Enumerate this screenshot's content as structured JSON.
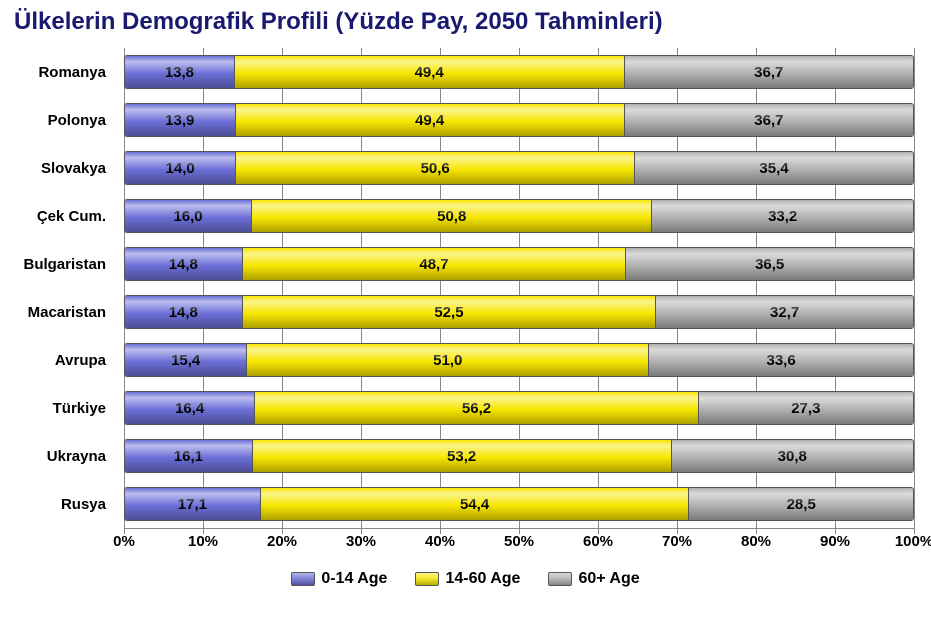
{
  "chart": {
    "type": "stacked-bar-horizontal",
    "title": "Ülkelerin Demografik Profili (Yüzde Pay, 2050 Tahminleri)",
    "title_color": "#191970",
    "title_fontsize": 24,
    "background_color": "#ffffff",
    "label_fontsize": 15,
    "value_fontsize": 15,
    "grid_color": "#888888",
    "bar_border_color": "#555555",
    "xaxis": {
      "min": 0,
      "max": 100,
      "tick_step": 10,
      "ticks": [
        "0%",
        "10%",
        "20%",
        "30%",
        "40%",
        "50%",
        "60%",
        "70%",
        "80%",
        "90%",
        "100%"
      ]
    },
    "series": [
      {
        "key": "age_0_14",
        "label": "0-14 Age",
        "color": "#6b6fd6"
      },
      {
        "key": "age_14_60",
        "label": "14-60 Age",
        "color": "#f7e600"
      },
      {
        "key": "age_60p",
        "label": "60+ Age",
        "color": "#b0b0b0"
      }
    ],
    "decimal_separator": ",",
    "countries": [
      {
        "name": "Romanya",
        "age_0_14": 13.8,
        "age_14_60": 49.4,
        "age_60p": 36.7
      },
      {
        "name": "Polonya",
        "age_0_14": 13.9,
        "age_14_60": 49.4,
        "age_60p": 36.7
      },
      {
        "name": "Slovakya",
        "age_0_14": 14.0,
        "age_14_60": 50.6,
        "age_60p": 35.4
      },
      {
        "name": "Çek Cum.",
        "age_0_14": 16.0,
        "age_14_60": 50.8,
        "age_60p": 33.2
      },
      {
        "name": "Bulgaristan",
        "age_0_14": 14.8,
        "age_14_60": 48.7,
        "age_60p": 36.5
      },
      {
        "name": "Macaristan",
        "age_0_14": 14.8,
        "age_14_60": 52.5,
        "age_60p": 32.7
      },
      {
        "name": "Avrupa",
        "age_0_14": 15.4,
        "age_14_60": 51.0,
        "age_60p": 33.6
      },
      {
        "name": "Türkiye",
        "age_0_14": 16.4,
        "age_14_60": 56.2,
        "age_60p": 27.3
      },
      {
        "name": "Ukrayna",
        "age_0_14": 16.1,
        "age_14_60": 53.2,
        "age_60p": 30.8
      },
      {
        "name": "Rusya",
        "age_0_14": 17.1,
        "age_14_60": 54.4,
        "age_60p": 28.5
      }
    ]
  }
}
